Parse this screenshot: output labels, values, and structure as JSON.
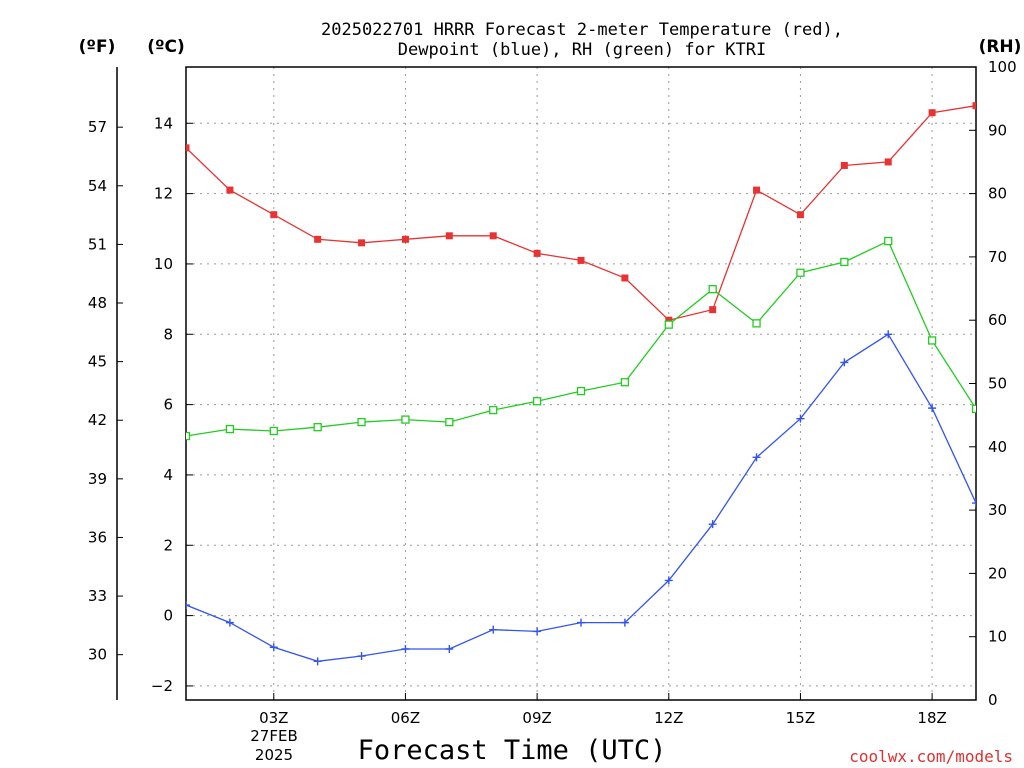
{
  "chart_data": {
    "type": "line",
    "title_line1": "2025022701 HRRR Forecast 2-meter Temperature (red),",
    "title_line2": "Dewpoint (blue), RH (green) for KTRI",
    "xlabel": "Forecast Time (UTC)",
    "date_line1": "27FEB",
    "date_line2": "2025",
    "watermark": "coolwx.com/models",
    "unit_f": "(ºF)",
    "unit_c": "(ºC)",
    "unit_rh": "(RH)",
    "x_hours": [
      1,
      2,
      3,
      4,
      5,
      6,
      7,
      8,
      9,
      10,
      11,
      12,
      13,
      14,
      15,
      16,
      17,
      18,
      19
    ],
    "xlim": [
      1,
      19
    ],
    "x_ticks": [
      {
        "hour": 3,
        "label": "03Z"
      },
      {
        "hour": 6,
        "label": "06Z"
      },
      {
        "hour": 9,
        "label": "09Z"
      },
      {
        "hour": 12,
        "label": "12Z"
      },
      {
        "hour": 15,
        "label": "15Z"
      },
      {
        "hour": 18,
        "label": "18Z"
      }
    ],
    "ylim_c": [
      -2.4,
      15.6
    ],
    "y_ticks_c": [
      -2,
      0,
      2,
      4,
      6,
      8,
      10,
      12,
      14
    ],
    "ylim_f": [
      27.68,
      60.08
    ],
    "y_ticks_f": [
      30,
      33,
      36,
      39,
      42,
      45,
      48,
      51,
      54,
      57
    ],
    "ylim_rh": [
      0,
      100
    ],
    "y_ticks_rh": [
      0,
      10,
      20,
      30,
      40,
      50,
      60,
      70,
      80,
      90,
      100
    ],
    "grid": true,
    "series": [
      {
        "name": "Temperature",
        "axis": "c",
        "color": "#e83333",
        "marker": "filled-square",
        "values": [
          13.3,
          12.1,
          11.4,
          10.7,
          10.6,
          10.7,
          10.8,
          10.8,
          10.3,
          10.1,
          9.6,
          8.4,
          8.7,
          12.1,
          11.4,
          12.8,
          12.9,
          14.3,
          14.5
        ]
      },
      {
        "name": "Dewpoint",
        "axis": "c",
        "color": "#3355ee",
        "marker": "plus",
        "values": [
          0.3,
          -0.2,
          -0.9,
          -1.3,
          -1.15,
          -0.95,
          -0.95,
          -0.4,
          -0.45,
          -0.2,
          -0.2,
          1.0,
          2.6,
          4.5,
          5.6,
          7.2,
          8.0,
          5.9,
          3.2
        ]
      },
      {
        "name": "RH",
        "axis": "rh",
        "color": "#22cc22",
        "marker": "open-square",
        "values": [
          41.7,
          42.8,
          42.5,
          43.1,
          43.9,
          44.3,
          43.9,
          45.8,
          47.2,
          48.8,
          50.2,
          59.3,
          64.9,
          59.5,
          67.5,
          69.2,
          72.5,
          56.8,
          46.0
        ]
      }
    ]
  }
}
